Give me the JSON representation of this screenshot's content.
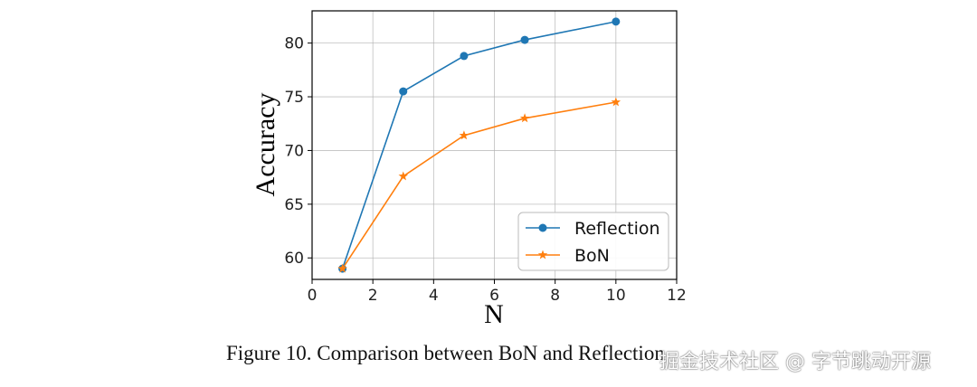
{
  "chart_data": {
    "type": "line",
    "title": "",
    "xlabel": "N",
    "ylabel": "Accuracy",
    "xlim": [
      0,
      12
    ],
    "ylim": [
      58,
      83
    ],
    "xticks": [
      0,
      2,
      4,
      6,
      8,
      10,
      12
    ],
    "yticks": [
      60,
      65,
      70,
      75,
      80
    ],
    "grid": true,
    "legend_position": "lower-right",
    "series": [
      {
        "name": "Reflection",
        "color": "#1f77b4",
        "marker": "circle",
        "x": [
          1,
          3,
          5,
          7,
          10
        ],
        "y": [
          59.0,
          75.5,
          78.8,
          80.3,
          82.0
        ]
      },
      {
        "name": "BoN",
        "color": "#ff7f0e",
        "marker": "star",
        "x": [
          1,
          3,
          5,
          7,
          10
        ],
        "y": [
          59.0,
          67.6,
          71.4,
          73.0,
          74.5
        ]
      }
    ]
  },
  "caption": "Figure 10. Comparison between BoN and Reflection",
  "watermark": "掘金技术社区 @ 字节跳动开源"
}
